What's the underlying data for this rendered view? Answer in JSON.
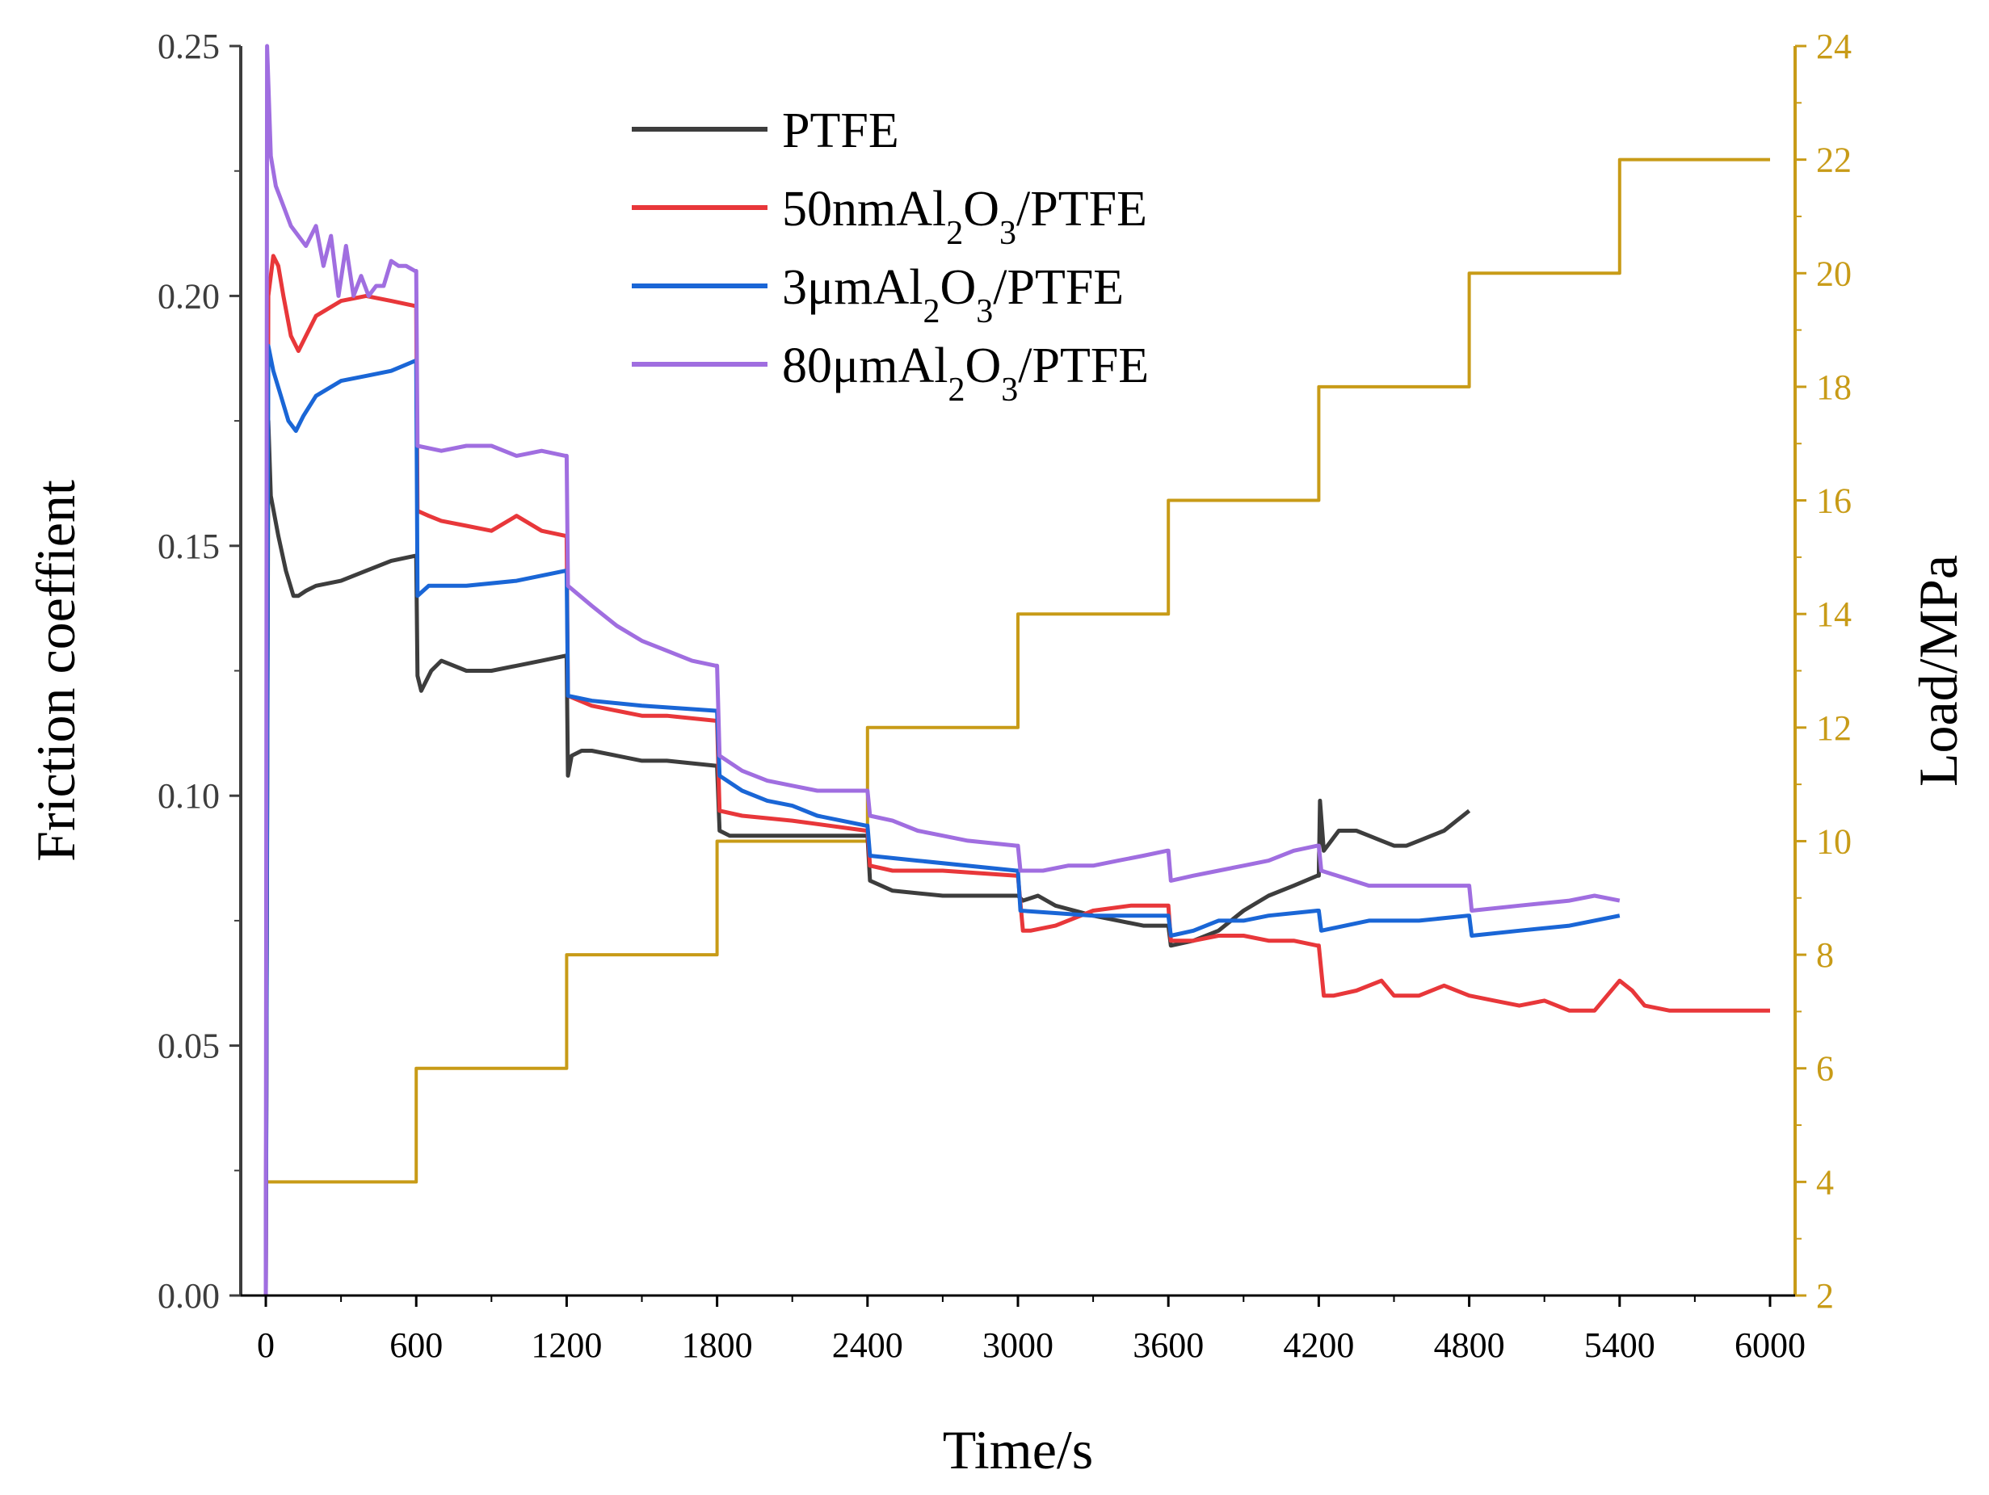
{
  "chart_data": {
    "type": "line",
    "title": "",
    "xlabel": "Time/s",
    "ylabel": "Friction coeffient",
    "y2label": "Load/MPa",
    "xlim": [
      -100,
      6100
    ],
    "ylim": [
      0,
      0.25
    ],
    "y2lim": [
      2,
      24
    ],
    "x_ticks": [
      "0",
      "600",
      "1200",
      "1800",
      "2400",
      "3000",
      "3600",
      "4200",
      "4800",
      "5400",
      "6000"
    ],
    "y_ticks": [
      "0.00",
      "0.05",
      "0.10",
      "0.15",
      "0.20",
      "0.25"
    ],
    "y2_ticks": [
      "2",
      "4",
      "6",
      "8",
      "10",
      "12",
      "14",
      "16",
      "18",
      "20",
      "22",
      "24"
    ],
    "grid": false,
    "legend_position": "top-center",
    "series": [
      {
        "name": "PTFE",
        "legend_label": {
          "prefix": "PTFE",
          "sub1": "",
          "mid": "",
          "sub2": "",
          "suffix": ""
        },
        "color": "#3d3d3d",
        "axis": "left",
        "x": [
          0,
          10,
          20,
          50,
          80,
          110,
          130,
          160,
          200,
          300,
          400,
          500,
          595,
          600,
          605,
          620,
          660,
          700,
          800,
          900,
          1000,
          1100,
          1195,
          1200,
          1205,
          1220,
          1260,
          1300,
          1400,
          1500,
          1600,
          1795,
          1800,
          1810,
          1850,
          2000,
          2200,
          2395,
          2400,
          2410,
          2500,
          2700,
          2995,
          3000,
          3020,
          3080,
          3150,
          3300,
          3500,
          3595,
          3600,
          3610,
          3700,
          3800,
          3900,
          4000,
          4100,
          4195,
          4200,
          4205,
          4220,
          4250,
          4280,
          4350,
          4400,
          4450,
          4500,
          4550,
          4600,
          4650,
          4700,
          4750,
          4800
        ],
        "y": [
          0.0,
          0.175,
          0.16,
          0.152,
          0.145,
          0.14,
          0.14,
          0.141,
          0.142,
          0.143,
          0.145,
          0.147,
          0.148,
          0.148,
          0.124,
          0.121,
          0.125,
          0.127,
          0.125,
          0.125,
          0.126,
          0.127,
          0.128,
          0.128,
          0.104,
          0.108,
          0.109,
          0.109,
          0.108,
          0.107,
          0.107,
          0.106,
          0.106,
          0.093,
          0.092,
          0.092,
          0.092,
          0.092,
          0.092,
          0.083,
          0.081,
          0.08,
          0.08,
          0.08,
          0.079,
          0.08,
          0.078,
          0.076,
          0.074,
          0.074,
          0.074,
          0.07,
          0.071,
          0.073,
          0.077,
          0.08,
          0.082,
          0.084,
          0.084,
          0.099,
          0.089,
          0.091,
          0.093,
          0.093,
          0.092,
          0.091,
          0.09,
          0.09,
          0.091,
          0.092,
          0.093,
          0.095,
          0.097
        ]
      },
      {
        "name": "50nmAl2O3/PTFE",
        "legend_label": {
          "prefix": "50nmAl",
          "sub1": "2",
          "mid": "O",
          "sub2": "3",
          "suffix": "/PTFE"
        },
        "color": "#e8373a",
        "axis": "left",
        "x": [
          0,
          10,
          30,
          50,
          70,
          100,
          130,
          160,
          200,
          300,
          400,
          500,
          595,
          600,
          605,
          650,
          700,
          800,
          900,
          1000,
          1100,
          1195,
          1200,
          1205,
          1300,
          1400,
          1500,
          1600,
          1795,
          1800,
          1810,
          1900,
          2100,
          2395,
          2400,
          2410,
          2500,
          2700,
          2995,
          3000,
          3020,
          3050,
          3150,
          3300,
          3450,
          3595,
          3600,
          3610,
          3700,
          3800,
          3900,
          4000,
          4100,
          4195,
          4200,
          4220,
          4260,
          4350,
          4450,
          4500,
          4600,
          4700,
          4800,
          4900,
          5000,
          5100,
          5200,
          5300,
          5350,
          5400,
          5450,
          5500,
          5600,
          5700,
          5800,
          5900,
          6000
        ],
        "y": [
          0.0,
          0.2,
          0.208,
          0.206,
          0.2,
          0.192,
          0.189,
          0.192,
          0.196,
          0.199,
          0.2,
          0.199,
          0.198,
          0.198,
          0.157,
          0.156,
          0.155,
          0.154,
          0.153,
          0.156,
          0.153,
          0.152,
          0.152,
          0.12,
          0.118,
          0.117,
          0.116,
          0.116,
          0.115,
          0.115,
          0.097,
          0.096,
          0.095,
          0.093,
          0.093,
          0.086,
          0.085,
          0.085,
          0.084,
          0.084,
          0.073,
          0.073,
          0.074,
          0.077,
          0.078,
          0.078,
          0.078,
          0.071,
          0.071,
          0.072,
          0.072,
          0.071,
          0.071,
          0.07,
          0.07,
          0.06,
          0.06,
          0.061,
          0.063,
          0.06,
          0.06,
          0.062,
          0.06,
          0.059,
          0.058,
          0.059,
          0.057,
          0.057,
          0.06,
          0.063,
          0.061,
          0.058,
          0.057,
          0.057,
          0.057,
          0.057,
          0.057
        ]
      },
      {
        "name": "3μmAl2O3/PTFE",
        "legend_label": {
          "prefix": "3μmAl",
          "sub1": "2",
          "mid": "O",
          "sub2": "3",
          "suffix": "/PTFE"
        },
        "color": "#1a66d6",
        "axis": "left",
        "x": [
          0,
          10,
          30,
          60,
          90,
          120,
          150,
          200,
          300,
          400,
          500,
          595,
          600,
          605,
          650,
          800,
          1000,
          1195,
          1200,
          1205,
          1300,
          1500,
          1795,
          1800,
          1810,
          1900,
          2000,
          2100,
          2200,
          2395,
          2400,
          2410,
          2600,
          2995,
          3000,
          3010,
          3300,
          3595,
          3600,
          3610,
          3700,
          3800,
          3900,
          4000,
          4195,
          4200,
          4210,
          4400,
          4600,
          4795,
          4800,
          4810,
          5000,
          5200,
          5400
        ],
        "y": [
          0.0,
          0.19,
          0.185,
          0.18,
          0.175,
          0.173,
          0.176,
          0.18,
          0.183,
          0.184,
          0.185,
          0.187,
          0.187,
          0.14,
          0.142,
          0.142,
          0.143,
          0.145,
          0.145,
          0.12,
          0.119,
          0.118,
          0.117,
          0.117,
          0.104,
          0.101,
          0.099,
          0.098,
          0.096,
          0.094,
          0.094,
          0.088,
          0.087,
          0.085,
          0.085,
          0.077,
          0.076,
          0.076,
          0.076,
          0.072,
          0.073,
          0.075,
          0.075,
          0.076,
          0.077,
          0.077,
          0.073,
          0.075,
          0.075,
          0.076,
          0.076,
          0.072,
          0.073,
          0.074,
          0.076
        ]
      },
      {
        "name": "80μmAl2O3/PTFE",
        "legend_label": {
          "prefix": "80μmAl",
          "sub1": "2",
          "mid": "O",
          "sub2": "3",
          "suffix": "/PTFE"
        },
        "color": "#a06ee0",
        "axis": "left",
        "x": [
          0,
          5,
          20,
          40,
          70,
          100,
          130,
          160,
          200,
          230,
          260,
          290,
          320,
          350,
          380,
          410,
          440,
          470,
          500,
          530,
          560,
          595,
          600,
          605,
          700,
          800,
          900,
          1000,
          1100,
          1195,
          1200,
          1205,
          1300,
          1400,
          1500,
          1600,
          1700,
          1795,
          1800,
          1810,
          1900,
          2000,
          2100,
          2200,
          2395,
          2400,
          2410,
          2500,
          2600,
          2700,
          2800,
          2995,
          3000,
          3010,
          3100,
          3200,
          3300,
          3400,
          3500,
          3595,
          3600,
          3610,
          3700,
          3800,
          3900,
          4000,
          4100,
          4195,
          4200,
          4210,
          4400,
          4600,
          4795,
          4800,
          4810,
          5000,
          5200,
          5300,
          5400
        ],
        "y": [
          0.0,
          0.25,
          0.228,
          0.222,
          0.218,
          0.214,
          0.212,
          0.21,
          0.214,
          0.206,
          0.212,
          0.2,
          0.21,
          0.2,
          0.204,
          0.2,
          0.202,
          0.202,
          0.207,
          0.206,
          0.206,
          0.205,
          0.205,
          0.17,
          0.169,
          0.17,
          0.17,
          0.168,
          0.169,
          0.168,
          0.168,
          0.142,
          0.138,
          0.134,
          0.131,
          0.129,
          0.127,
          0.126,
          0.126,
          0.108,
          0.105,
          0.103,
          0.102,
          0.101,
          0.101,
          0.101,
          0.096,
          0.095,
          0.093,
          0.092,
          0.091,
          0.09,
          0.09,
          0.085,
          0.085,
          0.086,
          0.086,
          0.087,
          0.088,
          0.089,
          0.089,
          0.083,
          0.084,
          0.085,
          0.086,
          0.087,
          0.089,
          0.09,
          0.09,
          0.085,
          0.082,
          0.082,
          0.082,
          0.082,
          0.077,
          0.078,
          0.079,
          0.08,
          0.079
        ]
      },
      {
        "name": "Load",
        "color": "#c89b17",
        "axis": "right",
        "x": [
          0,
          600,
          600,
          1200,
          1200,
          1800,
          1800,
          2400,
          2400,
          3000,
          3000,
          3600,
          3600,
          4200,
          4200,
          4800,
          4800,
          5400,
          5400,
          6000
        ],
        "y": [
          4,
          4,
          6,
          6,
          8,
          8,
          10,
          10,
          12,
          12,
          14,
          14,
          16,
          16,
          18,
          18,
          20,
          20,
          22,
          22
        ]
      }
    ]
  }
}
